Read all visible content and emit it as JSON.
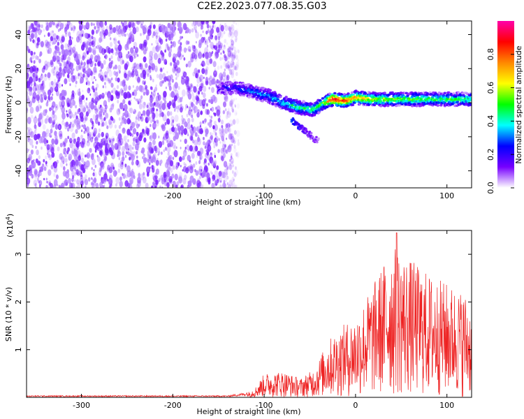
{
  "title": "C2E2.2023.077.08.35.G03",
  "chart_data": [
    {
      "type": "heatmap",
      "name": "spectrogram",
      "xlabel": "Height of straight line (km)",
      "ylabel": "Frequency (Hz)",
      "xlim": [
        -360,
        127
      ],
      "ylim": [
        -50,
        48
      ],
      "xticks": [
        -300,
        -200,
        -100,
        0,
        100
      ],
      "xtick_labels": [
        "-300",
        "-200",
        "-100",
        "0",
        "100"
      ],
      "yticks": [
        -40,
        -20,
        0,
        20,
        40
      ],
      "ytick_labels": [
        "-40",
        "-20",
        "0",
        "20",
        "40"
      ],
      "noise_region": {
        "x_range": [
          -360,
          -128
        ],
        "f_range": [
          -50,
          48
        ],
        "color": "#7a1fff"
      },
      "signal_track": [
        {
          "x": -150,
          "f": 8,
          "amp": 0.15
        },
        {
          "x": -130,
          "f": 9,
          "amp": 0.25
        },
        {
          "x": -110,
          "f": 6,
          "amp": 0.3
        },
        {
          "x": -95,
          "f": 4,
          "amp": 0.35
        },
        {
          "x": -80,
          "f": 0,
          "amp": 0.4
        },
        {
          "x": -60,
          "f": -3,
          "amp": 0.45
        },
        {
          "x": -45,
          "f": -4,
          "amp": 0.5
        },
        {
          "x": -35,
          "f": 0,
          "amp": 0.55
        },
        {
          "x": -25,
          "f": 2,
          "amp": 0.95
        },
        {
          "x": -10,
          "f": 1,
          "amp": 0.85
        },
        {
          "x": 0,
          "f": 3,
          "amp": 0.75
        },
        {
          "x": 20,
          "f": 2,
          "amp": 0.6
        },
        {
          "x": 50,
          "f": 2,
          "amp": 0.55
        },
        {
          "x": 80,
          "f": 2,
          "amp": 0.5
        },
        {
          "x": 110,
          "f": 2,
          "amp": 0.5
        },
        {
          "x": 127,
          "f": 2,
          "amp": 0.45
        }
      ],
      "branch_track": [
        {
          "x": -70,
          "f": -10,
          "amp": 0.25
        },
        {
          "x": -55,
          "f": -17,
          "amp": 0.15
        },
        {
          "x": -40,
          "f": -23,
          "amp": 0.08
        }
      ],
      "colorbar": {
        "label": "Normalized spectral amplitude",
        "range": [
          0,
          1
        ],
        "ticks": [
          0.0,
          0.2,
          0.4,
          0.6,
          0.8
        ],
        "tick_labels": [
          "0.0",
          "0.2",
          "0.4",
          "0.6",
          "0.8"
        ],
        "colormap": [
          "#ffffff",
          "#7700ff",
          "#0000ff",
          "#00ffff",
          "#00ff00",
          "#ffff00",
          "#ff8800",
          "#ff0000",
          "#ff00aa"
        ]
      }
    },
    {
      "type": "line",
      "name": "snr",
      "xlabel": "Height of straight line (km)",
      "ylabel": "SNR (10 * v/v)",
      "scale_label": "(x10",
      "scale_exponent": "4",
      "scale_close": ")",
      "xlim": [
        -360,
        127
      ],
      "ylim": [
        0,
        3.5
      ],
      "xticks": [
        -300,
        -200,
        -100,
        0,
        100
      ],
      "xtick_labels": [
        "-300",
        "-200",
        "-100",
        "0",
        "100"
      ],
      "yticks": [
        1,
        2,
        3
      ],
      "ytick_labels": [
        "1",
        "2",
        "3"
      ],
      "color": "#ee2222",
      "envelope": [
        {
          "x": -360,
          "y": 0.03
        },
        {
          "x": -140,
          "y": 0.03
        },
        {
          "x": -120,
          "y": 0.08
        },
        {
          "x": -110,
          "y": 0.2
        },
        {
          "x": -100,
          "y": 0.5
        },
        {
          "x": -80,
          "y": 0.55
        },
        {
          "x": -60,
          "y": 0.4
        },
        {
          "x": -45,
          "y": 0.6
        },
        {
          "x": -30,
          "y": 1.2
        },
        {
          "x": -15,
          "y": 1.5
        },
        {
          "x": 0,
          "y": 1.7
        },
        {
          "x": 20,
          "y": 2.4
        },
        {
          "x": 40,
          "y": 3.2
        },
        {
          "x": 60,
          "y": 2.9
        },
        {
          "x": 80,
          "y": 2.6
        },
        {
          "x": 100,
          "y": 2.4
        },
        {
          "x": 120,
          "y": 2.2
        },
        {
          "x": 127,
          "y": 1.8
        }
      ],
      "peak": {
        "x": 45,
        "y": 3.45
      }
    }
  ]
}
